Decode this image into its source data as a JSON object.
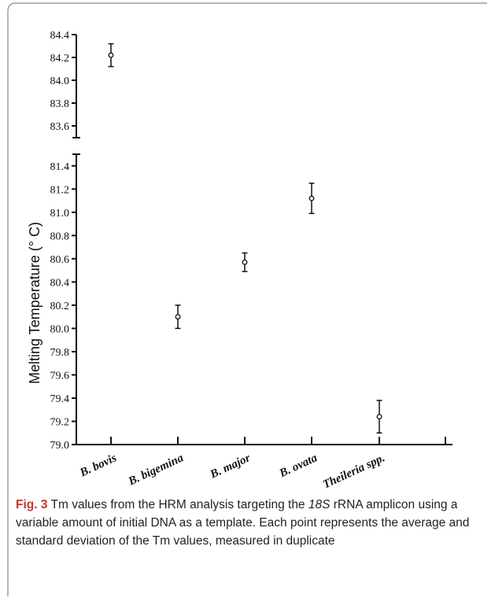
{
  "chart_data": {
    "type": "scatter",
    "ylabel": "Melting Temperature (° C)",
    "categories": [
      "B. bovis",
      "B. bigemina",
      "B. major",
      "B. ovata",
      "Theileria spp."
    ],
    "series": [
      {
        "values": [
          84.22,
          80.1,
          80.57,
          81.12,
          79.24
        ],
        "error": [
          0.1,
          0.1,
          0.08,
          0.13,
          0.14
        ]
      }
    ],
    "axis_breaks": [
      {
        "ylim": [
          83.5,
          84.4
        ],
        "ticks": [
          "83.6",
          "83.8",
          "84.0",
          "84.2",
          "84.4"
        ]
      },
      {
        "ylim": [
          79.0,
          81.5
        ],
        "ticks": [
          "79.0",
          "79.2",
          "79.4",
          "79.6",
          "79.8",
          "80.0",
          "80.2",
          "80.4",
          "80.6",
          "80.8",
          "81.0",
          "81.2",
          "81.4"
        ]
      }
    ],
    "grid": false
  },
  "caption": {
    "fig_label": "Fig. 3",
    "text_before": "Tm values from the HRM analysis targeting the ",
    "gene": "18S",
    "text_after": " rRNA amplicon using a variable amount of initial DNA as a template. Each point represents the average and standard deviation of the Tm values, measured in duplicate"
  }
}
